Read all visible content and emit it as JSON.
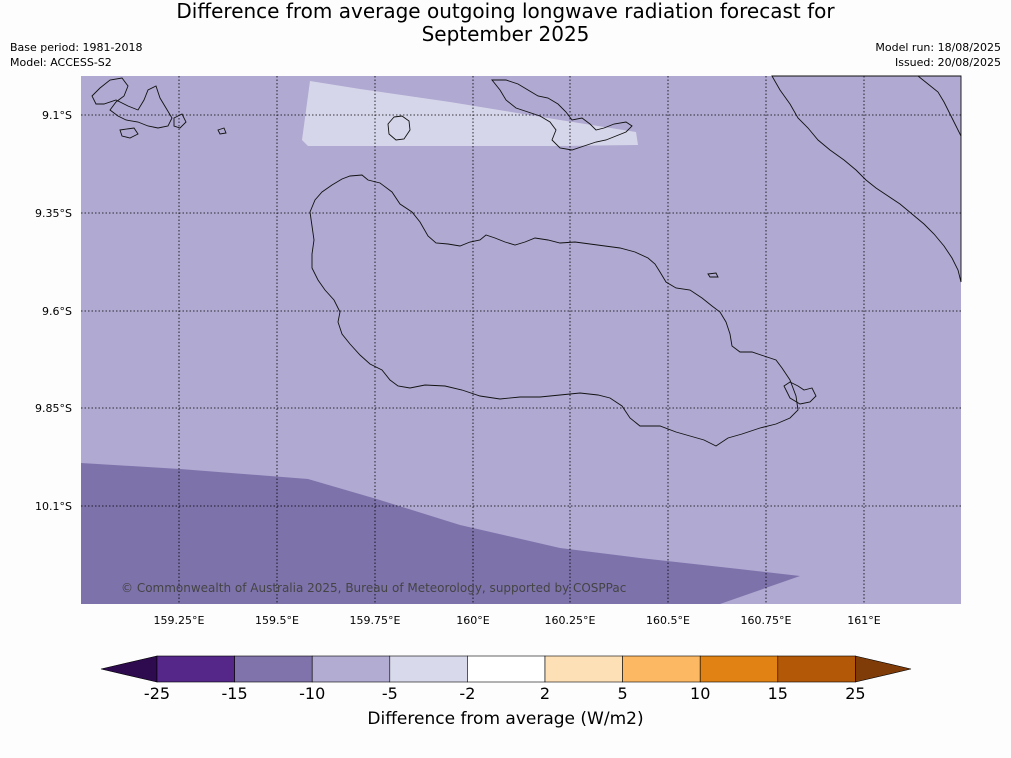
{
  "title_line1": "Difference from average outgoing longwave radiation forecast for",
  "title_line2": "September 2025",
  "base_period": "Base period: 1981-2018",
  "model": "Model: ACCESS-S2",
  "model_run": "Model run: 18/08/2025",
  "issued": "Issued: 20/08/2025",
  "copyright": "© Commonwealth of Australia 2025, Bureau of Meteorology, supported by COSPPac",
  "map": {
    "lon_range": [
      159.0,
      161.25
    ],
    "lat_range": [
      -10.33,
      -9.0
    ],
    "lon_ticks": [
      {
        "value": 159.25,
        "label": "159.25°E"
      },
      {
        "value": 159.5,
        "label": "159.5°E"
      },
      {
        "value": 159.75,
        "label": "159.75°E"
      },
      {
        "value": 160.0,
        "label": "160°E"
      },
      {
        "value": 160.25,
        "label": "160.25°E"
      },
      {
        "value": 160.5,
        "label": "160.5°E"
      },
      {
        "value": 160.75,
        "label": "160.75°E"
      },
      {
        "value": 161.0,
        "label": "161°E"
      }
    ],
    "lat_ticks": [
      {
        "value": -9.1,
        "label": "9.1°S"
      },
      {
        "value": -9.35,
        "label": "9.35°S"
      },
      {
        "value": -9.6,
        "label": "9.6°S"
      },
      {
        "value": -9.85,
        "label": "9.85°S"
      },
      {
        "value": -10.1,
        "label": "10.1°S"
      }
    ],
    "background_category": "-10 to -5",
    "areas": [
      {
        "category": "-5 to -2",
        "region": "north-central band near Florida Islands"
      },
      {
        "category": "-15 to -10",
        "region": "southwest"
      }
    ]
  },
  "colorbar": {
    "label": "Difference from average (W/m2)",
    "ticks": [
      "-25",
      "-15",
      "-10",
      "-5",
      "-2",
      "2",
      "5",
      "10",
      "15",
      "25"
    ],
    "under_color": "#2d0b4e",
    "over_color": "#7f3b08",
    "colors": [
      "#542788",
      "#8073ac",
      "#b2abd2",
      "#d8daeb",
      "#ffffff",
      "#fee0b6",
      "#fdb863",
      "#e08214",
      "#b35806"
    ]
  }
}
